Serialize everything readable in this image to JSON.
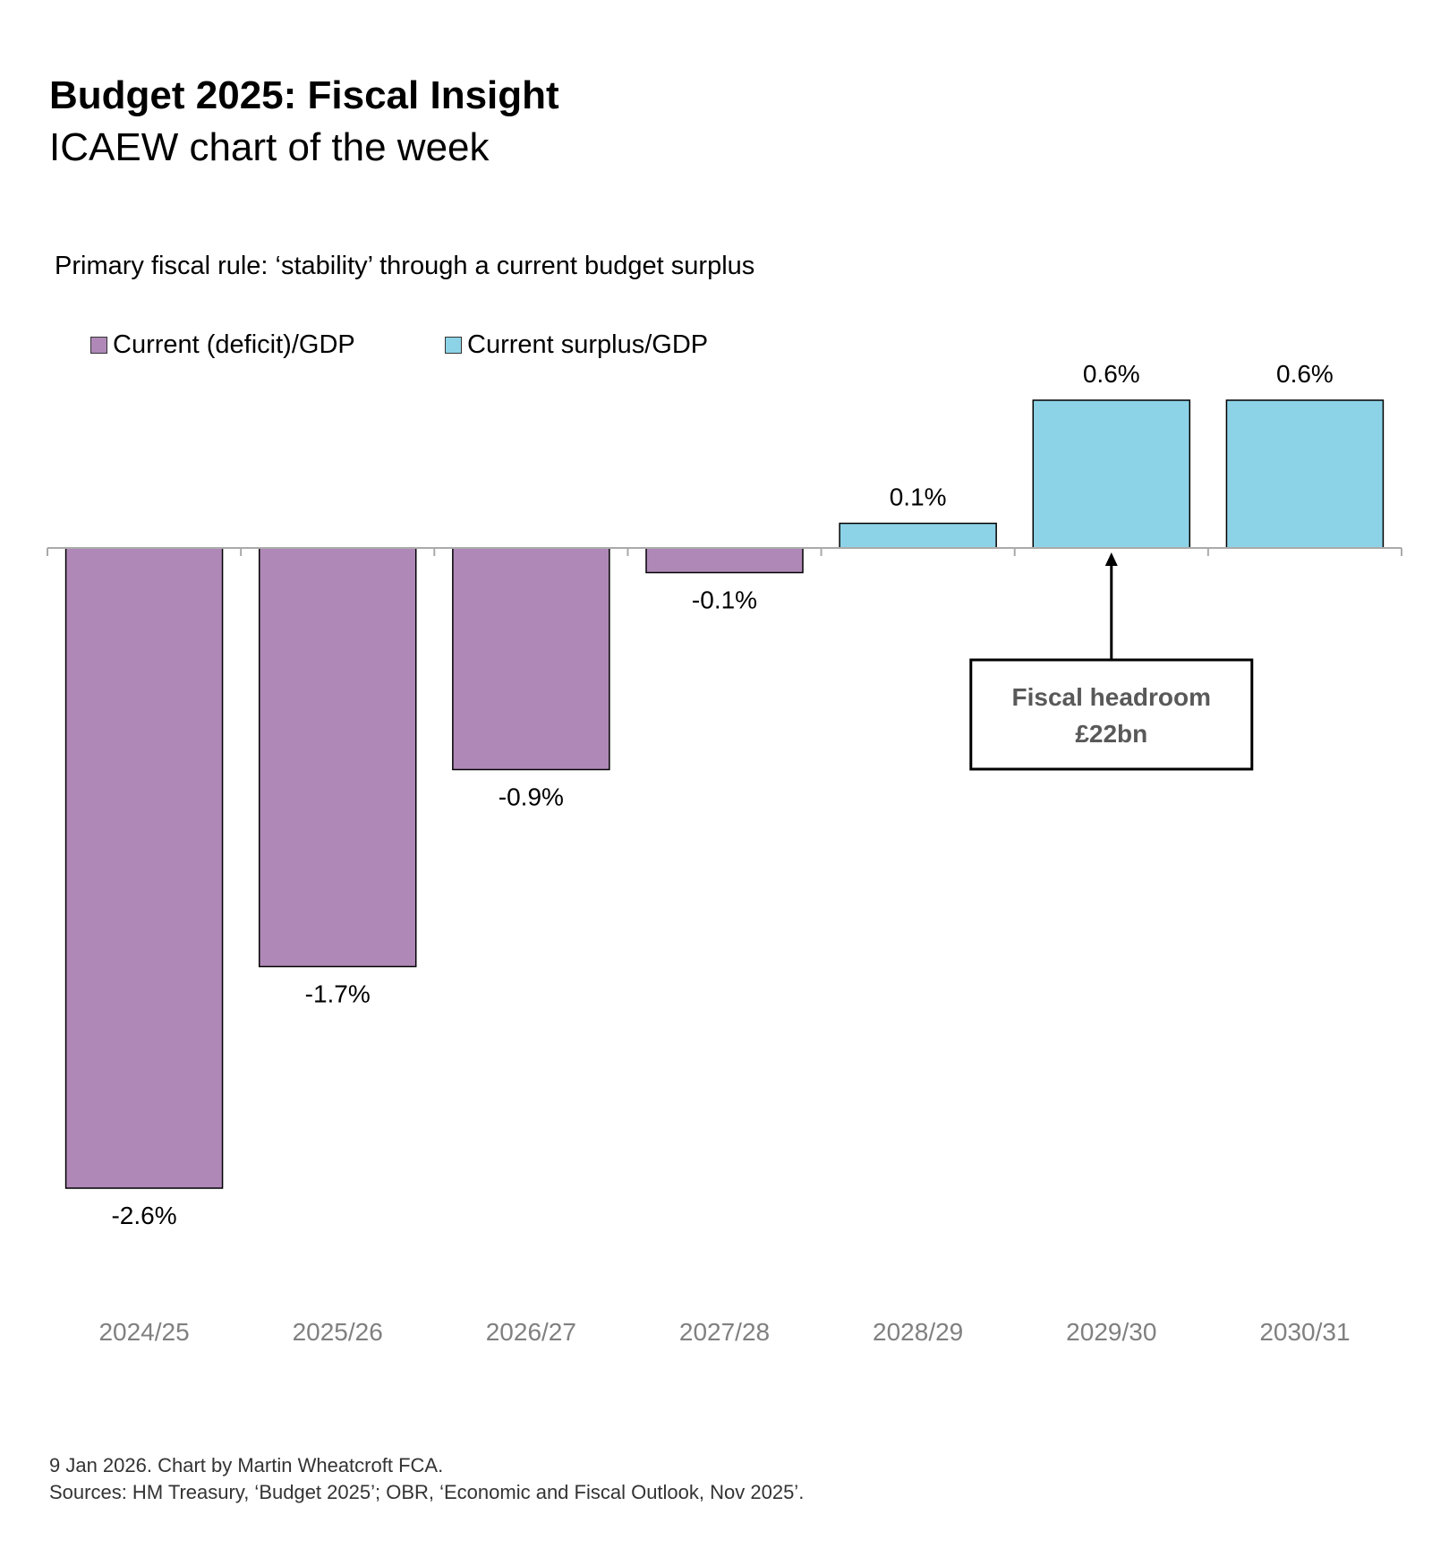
{
  "header": {
    "title": "Budget 2025: Fiscal Insight",
    "subtitle": "ICAEW chart of the week"
  },
  "chart_data": {
    "type": "bar",
    "title": "Primary fiscal rule: ‘stability’ through a current budget surplus",
    "categories": [
      "2024/25",
      "2025/26",
      "2026/27",
      "2027/28",
      "2028/29",
      "2029/30",
      "2030/31"
    ],
    "series": [
      {
        "name": "Current (deficit)/GDP",
        "color": "#b088b8",
        "values": [
          -2.6,
          -1.7,
          -0.9,
          -0.1,
          null,
          null,
          null
        ]
      },
      {
        "name": "Current surplus/GDP",
        "color": "#8dd3e7",
        "values": [
          null,
          null,
          null,
          null,
          0.1,
          0.6,
          0.6
        ]
      }
    ],
    "data_labels": [
      "-2.6%",
      "-1.7%",
      "-0.9%",
      "-0.1%",
      "0.1%",
      "0.6%",
      "0.6%"
    ],
    "ylim": [
      -2.6,
      0.6
    ],
    "grid": false,
    "legend": "top-left",
    "annotation": {
      "line1": "Fiscal headroom",
      "line2": "£22bn",
      "points_to": "2029/30"
    }
  },
  "footer": {
    "line1": "9 Jan 2026.   Chart by Martin Wheatcroft FCA.",
    "line2": "Sources: HM Treasury, ‘Budget 2025’; OBR, ‘Economic and Fiscal Outlook, Nov 2025’."
  }
}
